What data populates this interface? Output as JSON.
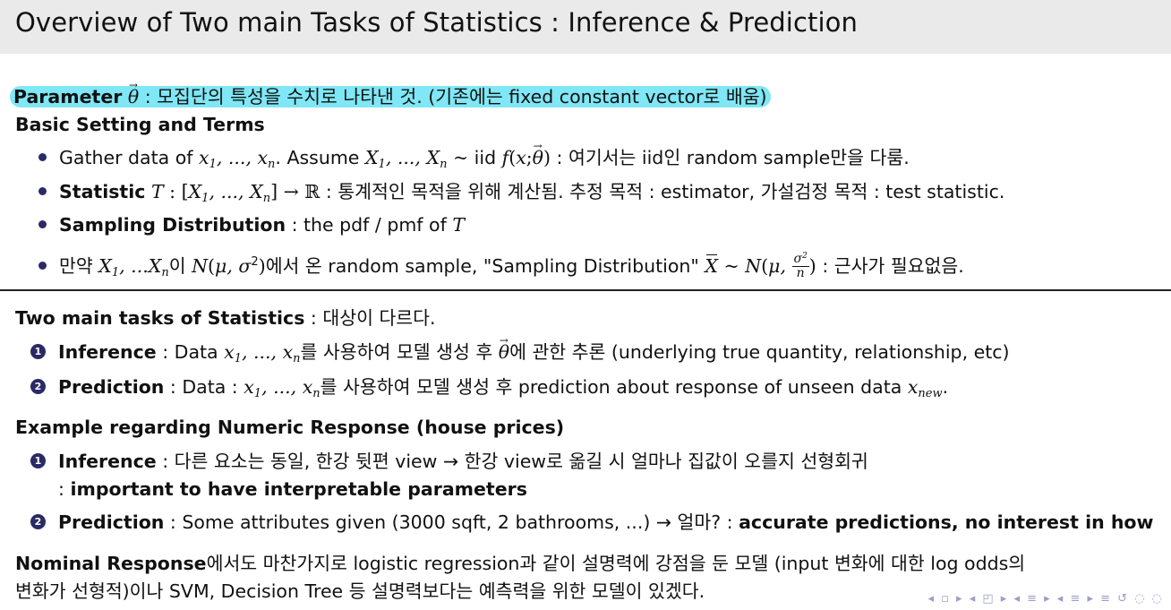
{
  "title": "Overview of Two main Tasks of Statistics : Inference & Prediction",
  "parameter": {
    "label": "Parameter",
    "symbol": "θ",
    "text": " : 모집단의 특성을 수치로 나타낸 것. (기존에는 fixed constant vector로 배움)"
  },
  "basic": {
    "heading": "Basic Setting and Terms",
    "b1": {
      "pre": "Gather data of ",
      "data": "x",
      "mid": ". Assume ",
      "rv": "X",
      "iid": " iid ",
      "post": " : 여기서는 iid인 random sample만을 다룸."
    },
    "b2": {
      "label": "Statistic",
      "sym": "T",
      "post": " : 통계적인 목적을 위해 계산됨. 추정 목적 : estimator, 가설검정 목적 : test statistic."
    },
    "b3": {
      "label": "Sampling Distribution",
      "post": " : the pdf / pmf of "
    },
    "b4": {
      "pre": "만약 ",
      "mid1": "이 ",
      "mid2": "에서 온 random sample, \"Sampling Distribution\" ",
      "post": " : 근사가 필요없음."
    }
  },
  "tasks": {
    "heading": "Two main tasks of Statistics",
    "heading_post": " : 대상이 다르다.",
    "i1": {
      "num": "1",
      "label": "Inference",
      "pre": " : Data ",
      "mid": "를 사용하여 모델 생성 후 ",
      "post": "에 관한 추론 (underlying true quantity, relationship, etc)"
    },
    "i2": {
      "num": "2",
      "label": "Prediction",
      "pre": " : Data : ",
      "mid": "를 사용하여 모델 생성 후 prediction about response of unseen data ",
      "post": "."
    }
  },
  "example": {
    "heading": "Example regarding Numeric Response (house prices)",
    "i1": {
      "num": "1",
      "label": "Inference",
      "text": " : 다른 요소는 동일, 한강 뒷편 view → 한강 view로 옮길 시 얼마나 집값이 오를지 선형회귀",
      "sub_pre": ": ",
      "sub_bold": "important to have interpretable parameters"
    },
    "i2": {
      "num": "2",
      "label": "Prediction",
      "text": " : Some attributes given (3000 sqft, 2 bathrooms, ...) → 얼마? : ",
      "bold": "accurate predictions, no interest in how"
    }
  },
  "nominal": {
    "label": "Nominal Response",
    "line1": "에서도 마찬가지로 logistic regression과 같이 설명력에 강점을 둔 모델 (input 변화에 대한 log odds의",
    "line2": "변화가 선형적)이나 SVM, Decision Tree 등 설명력보다는 예측력을 위한 모델이 있겠다."
  },
  "nav_icons": "◂ ▫ ▸ ◂ ◰ ▸ ◂ ≡ ▸ ◂ ≡ ▸   ≡   ↺ ◌ ◌"
}
